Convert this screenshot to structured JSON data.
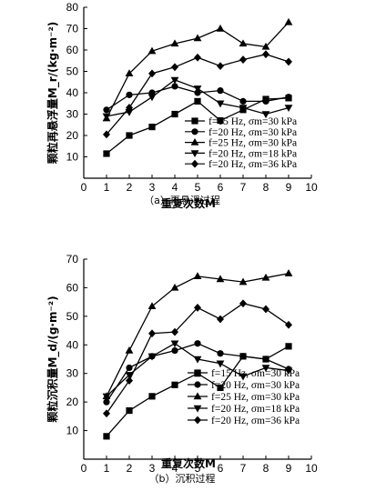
{
  "chart_data": [
    {
      "type": "line",
      "title": "",
      "caption": "（a）再悬浮过程",
      "xlabel": "重复次数M",
      "ylabel": "颗粒再悬浮量M_r/(kg·m⁻²)",
      "xlim": [
        0,
        10
      ],
      "ylim": [
        0,
        80
      ],
      "x_ticks": [
        0,
        1,
        2,
        3,
        4,
        5,
        6,
        7,
        8,
        9,
        10
      ],
      "y_ticks": [
        10,
        20,
        30,
        40,
        50,
        60,
        70,
        80
      ],
      "legend_position": "bottom-right",
      "x": [
        1,
        2,
        3,
        4,
        5,
        6,
        7,
        8,
        9
      ],
      "series": [
        {
          "name": "f=15 Hz, σm=30 kPa",
          "marker": "square",
          "values": [
            11.5,
            20,
            24,
            30,
            36,
            27,
            32,
            37,
            37.5
          ]
        },
        {
          "name": "f=20 Hz, σm=30 kPa",
          "marker": "circle",
          "values": [
            32,
            39,
            40,
            43,
            40,
            41,
            36,
            36,
            38
          ]
        },
        {
          "name": "f=25 Hz, σm=30 kPa",
          "marker": "triangle-up",
          "values": [
            28,
            49,
            59.5,
            63,
            65.5,
            70,
            63,
            61.5,
            73
          ]
        },
        {
          "name": "f=20 Hz, σm=18 kPa",
          "marker": "triangle-down",
          "values": [
            29,
            31,
            38,
            46,
            42,
            35,
            33,
            30,
            33
          ]
        },
        {
          "name": "f=20 Hz, σm=36 kPa",
          "marker": "diamond",
          "values": [
            20.5,
            33,
            49,
            52,
            56.5,
            52.5,
            55.5,
            58,
            54.5
          ]
        }
      ]
    },
    {
      "type": "line",
      "title": "",
      "caption": "（b）沉积过程",
      "xlabel": "重复次数M",
      "ylabel": "颗粒沉积量M_d/(g·m⁻²)",
      "xlim": [
        0,
        10
      ],
      "ylim": [
        0,
        70
      ],
      "x_ticks": [
        0,
        1,
        2,
        3,
        4,
        5,
        6,
        7,
        8,
        9,
        10
      ],
      "y_ticks": [
        10,
        20,
        30,
        40,
        50,
        60,
        70
      ],
      "legend_position": "bottom-right",
      "x": [
        1,
        2,
        3,
        4,
        5,
        6,
        7,
        8,
        9
      ],
      "series": [
        {
          "name": "f=15 Hz, σm=30 kPa",
          "marker": "square",
          "values": [
            8,
            17,
            22,
            26,
            30,
            25,
            36,
            35,
            39.5
          ]
        },
        {
          "name": "f=20 Hz, σm=30 kPa",
          "marker": "circle",
          "values": [
            20,
            32,
            36,
            38,
            40.5,
            37,
            36,
            35,
            31.5
          ]
        },
        {
          "name": "f=25 Hz, σm=30 kPa",
          "marker": "triangle-up",
          "values": [
            22,
            38,
            53.5,
            60,
            64,
            63,
            62,
            63.5,
            65
          ]
        },
        {
          "name": "f=20 Hz, σm=18 kPa",
          "marker": "triangle-down",
          "values": [
            22,
            29.5,
            36,
            40.5,
            35,
            33.5,
            29,
            32,
            31
          ]
        },
        {
          "name": "f=20 Hz, σm=36 kPa",
          "marker": "diamond",
          "values": [
            16,
            27.5,
            44,
            44.5,
            53,
            49,
            54.5,
            52.5,
            47
          ]
        }
      ]
    }
  ]
}
